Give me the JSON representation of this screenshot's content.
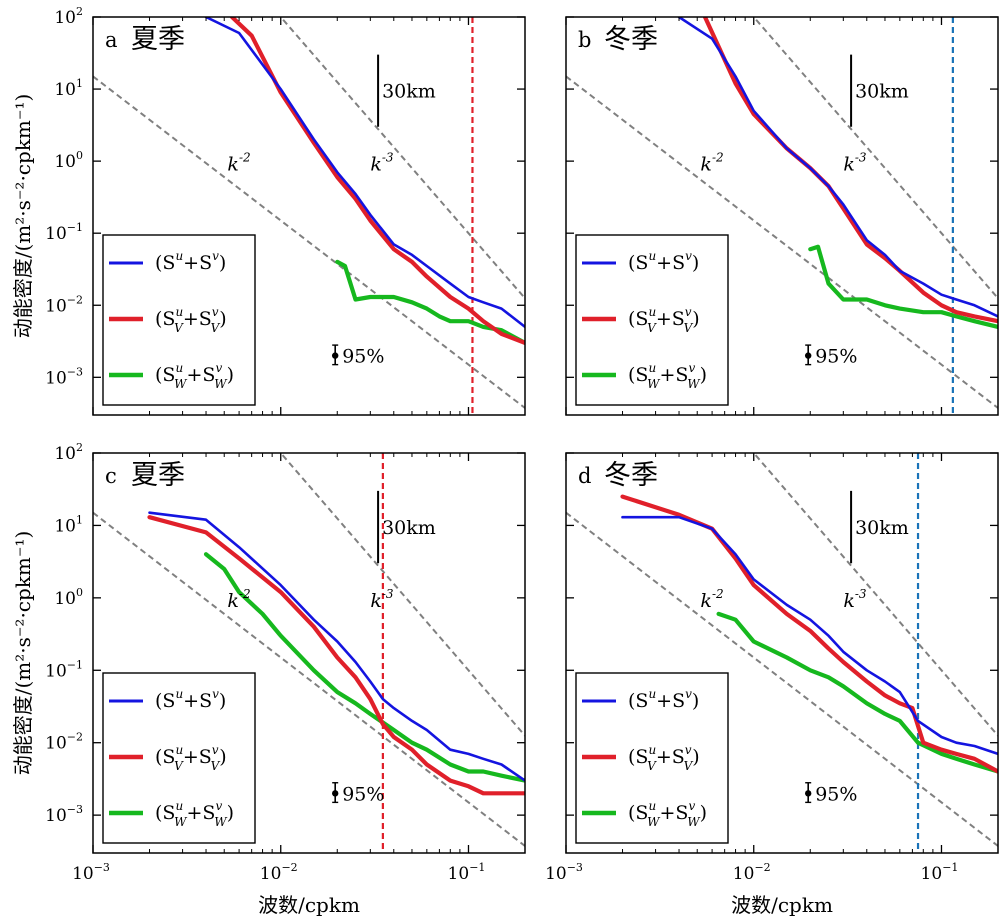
{
  "chart_data": [
    {
      "type": "line",
      "panel_letter": "a",
      "season": "夏季",
      "xlabel": "",
      "ylabel": "动能密度/(m²·s⁻²·cpkm⁻¹)",
      "xscale": "log",
      "yscale": "log",
      "xlim": [
        0.001,
        0.2
      ],
      "ylim": [
        0.0003,
        100
      ],
      "x_ticks": [
        0.001,
        0.01,
        0.1
      ],
      "x_tick_labels_visible": false,
      "y_ticks": [
        0.001,
        0.01,
        0.1,
        1,
        10,
        100
      ],
      "y_tick_labels_visible": true,
      "cutoff_line": {
        "x": 0.105,
        "color": "#e0202a"
      },
      "scale_bar_label": "30km",
      "scale_bar_x": 0.033,
      "scale_bar_y": [
        3,
        30
      ],
      "ref_slopes": [
        {
          "label": "k",
          "exp": "-2",
          "x0": 0.001,
          "y0": 15,
          "label_x": 0.0052,
          "label_y": 0.9
        },
        {
          "label": "k",
          "exp": "-3",
          "x0": 0.01,
          "y0": 100,
          "label_x": 0.03,
          "label_y": 0.9
        }
      ],
      "confidence_label": "95%",
      "confidence_x": 0.0195,
      "confidence_y": 0.002,
      "confidence_range": [
        0.0015,
        0.0028
      ],
      "legend_position": "lower-left",
      "series": [
        {
          "color": "#1414e0",
          "legend": {
            "base": "(S",
            "sup1": "u",
            "sub1": "",
            "mid": "+S",
            "sup2": "v",
            "sub2": "",
            "end": ")"
          },
          "x": [
            0.004,
            0.006,
            0.01,
            0.015,
            0.02,
            0.025,
            0.03,
            0.04,
            0.05,
            0.06,
            0.08,
            0.1,
            0.12,
            0.15,
            0.2
          ],
          "y": [
            100,
            60,
            10,
            2.0,
            0.7,
            0.35,
            0.18,
            0.07,
            0.05,
            0.035,
            0.02,
            0.013,
            0.011,
            0.009,
            0.005
          ]
        },
        {
          "color": "#e0202a",
          "legend": {
            "base": "(S",
            "sup1": "u",
            "sub1": "V",
            "mid": "+S",
            "sup2": "v",
            "sub2": "V",
            "end": ")"
          },
          "x": [
            0.0055,
            0.007,
            0.01,
            0.015,
            0.02,
            0.025,
            0.03,
            0.04,
            0.05,
            0.06,
            0.08,
            0.1,
            0.12,
            0.15,
            0.2
          ],
          "y": [
            100,
            55,
            9,
            1.8,
            0.6,
            0.3,
            0.15,
            0.06,
            0.04,
            0.025,
            0.013,
            0.009,
            0.006,
            0.004,
            0.003
          ]
        },
        {
          "color": "#16b81e",
          "legend": {
            "base": "(S",
            "sup1": "u",
            "sub1": "W",
            "mid": "+S",
            "sup2": "v",
            "sub2": "W",
            "end": ")"
          },
          "x": [
            0.02,
            0.022,
            0.025,
            0.03,
            0.04,
            0.05,
            0.06,
            0.07,
            0.08,
            0.1,
            0.12,
            0.15,
            0.2
          ],
          "y": [
            0.04,
            0.035,
            0.012,
            0.013,
            0.013,
            0.011,
            0.009,
            0.007,
            0.006,
            0.006,
            0.005,
            0.0045,
            0.003
          ]
        }
      ]
    },
    {
      "type": "line",
      "panel_letter": "b",
      "season": "冬季",
      "xlabel": "",
      "ylabel": "",
      "xscale": "log",
      "yscale": "log",
      "xlim": [
        0.001,
        0.2
      ],
      "ylim": [
        0.0003,
        100
      ],
      "x_ticks": [
        0.001,
        0.01,
        0.1
      ],
      "x_tick_labels_visible": false,
      "y_ticks": [
        0.001,
        0.01,
        0.1,
        1,
        10,
        100
      ],
      "y_tick_labels_visible": false,
      "cutoff_line": {
        "x": 0.115,
        "color": "#1a73b8"
      },
      "scale_bar_label": "30km",
      "scale_bar_x": 0.033,
      "scale_bar_y": [
        3,
        30
      ],
      "ref_slopes": [
        {
          "label": "k",
          "exp": "-2",
          "x0": 0.001,
          "y0": 15,
          "label_x": 0.0052,
          "label_y": 0.9
        },
        {
          "label": "k",
          "exp": "-3",
          "x0": 0.01,
          "y0": 100,
          "label_x": 0.03,
          "label_y": 0.9
        }
      ],
      "confidence_label": "95%",
      "confidence_x": 0.0195,
      "confidence_y": 0.002,
      "confidence_range": [
        0.0015,
        0.0028
      ],
      "legend_position": "lower-left",
      "series": [
        {
          "color": "#1414e0",
          "legend": {
            "base": "(S",
            "sup1": "u",
            "sub1": "",
            "mid": "+S",
            "sup2": "v",
            "sub2": "",
            "end": ")"
          },
          "x": [
            0.004,
            0.006,
            0.008,
            0.01,
            0.015,
            0.02,
            0.025,
            0.03,
            0.04,
            0.05,
            0.06,
            0.08,
            0.1,
            0.12,
            0.15,
            0.2
          ],
          "y": [
            100,
            50,
            15,
            5,
            1.5,
            0.8,
            0.45,
            0.25,
            0.08,
            0.05,
            0.03,
            0.02,
            0.014,
            0.012,
            0.01,
            0.007
          ]
        },
        {
          "color": "#e0202a",
          "legend": {
            "base": "(S",
            "sup1": "u",
            "sub1": "V",
            "mid": "+S",
            "sup2": "v",
            "sub2": "V",
            "end": ")"
          },
          "x": [
            0.0055,
            0.008,
            0.01,
            0.015,
            0.02,
            0.025,
            0.03,
            0.04,
            0.05,
            0.06,
            0.08,
            0.1,
            0.12,
            0.15,
            0.2
          ],
          "y": [
            100,
            12,
            4.5,
            1.5,
            0.8,
            0.45,
            0.22,
            0.07,
            0.045,
            0.03,
            0.015,
            0.01,
            0.008,
            0.007,
            0.006
          ]
        },
        {
          "color": "#16b81e",
          "legend": {
            "base": "(S",
            "sup1": "u",
            "sub1": "W",
            "mid": "+S",
            "sup2": "v",
            "sub2": "W",
            "end": ")"
          },
          "x": [
            0.02,
            0.022,
            0.025,
            0.03,
            0.04,
            0.05,
            0.06,
            0.08,
            0.1,
            0.12,
            0.15,
            0.2
          ],
          "y": [
            0.06,
            0.065,
            0.02,
            0.012,
            0.012,
            0.01,
            0.009,
            0.008,
            0.008,
            0.007,
            0.006,
            0.005
          ]
        }
      ]
    },
    {
      "type": "line",
      "panel_letter": "c",
      "season": "夏季",
      "xlabel": "波数/cpkm",
      "ylabel": "动能密度/(m²·s⁻²·cpkm⁻¹)",
      "xscale": "log",
      "yscale": "log",
      "xlim": [
        0.001,
        0.2
      ],
      "ylim": [
        0.0003,
        100
      ],
      "x_ticks": [
        0.001,
        0.01,
        0.1
      ],
      "x_tick_labels_visible": true,
      "y_ticks": [
        0.001,
        0.01,
        0.1,
        1,
        10,
        100
      ],
      "y_tick_labels_visible": true,
      "cutoff_line": {
        "x": 0.035,
        "color": "#e0202a"
      },
      "scale_bar_label": "30km",
      "scale_bar_x": 0.033,
      "scale_bar_y": [
        3,
        30
      ],
      "ref_slopes": [
        {
          "label": "k",
          "exp": "-2",
          "x0": 0.001,
          "y0": 15,
          "label_x": 0.0052,
          "label_y": 0.9
        },
        {
          "label": "k",
          "exp": "-3",
          "x0": 0.01,
          "y0": 100,
          "label_x": 0.03,
          "label_y": 0.9
        }
      ],
      "confidence_label": "95%",
      "confidence_x": 0.0195,
      "confidence_y": 0.002,
      "confidence_range": [
        0.0015,
        0.0028
      ],
      "legend_position": "lower-left",
      "series": [
        {
          "color": "#1414e0",
          "legend": {
            "base": "(S",
            "sup1": "u",
            "sub1": "",
            "mid": "+S",
            "sup2": "v",
            "sub2": "",
            "end": ")"
          },
          "x": [
            0.002,
            0.004,
            0.006,
            0.01,
            0.015,
            0.02,
            0.025,
            0.03,
            0.035,
            0.04,
            0.05,
            0.06,
            0.08,
            0.1,
            0.12,
            0.15,
            0.2
          ],
          "y": [
            15,
            12,
            5,
            1.5,
            0.5,
            0.25,
            0.13,
            0.07,
            0.04,
            0.03,
            0.02,
            0.015,
            0.008,
            0.007,
            0.006,
            0.005,
            0.003
          ]
        },
        {
          "color": "#e0202a",
          "legend": {
            "base": "(S",
            "sup1": "u",
            "sub1": "V",
            "mid": "+S",
            "sup2": "v",
            "sub2": "V",
            "end": ")"
          },
          "x": [
            0.002,
            0.004,
            0.006,
            0.01,
            0.015,
            0.02,
            0.025,
            0.03,
            0.035,
            0.04,
            0.05,
            0.06,
            0.08,
            0.1,
            0.12,
            0.15,
            0.2
          ],
          "y": [
            13,
            8,
            3.5,
            1.2,
            0.4,
            0.15,
            0.08,
            0.04,
            0.018,
            0.012,
            0.008,
            0.005,
            0.003,
            0.0025,
            0.002,
            0.002,
            0.002
          ]
        },
        {
          "color": "#16b81e",
          "legend": {
            "base": "(S",
            "sup1": "u",
            "sub1": "W",
            "mid": "+S",
            "sup2": "v",
            "sub2": "W",
            "end": ")"
          },
          "x": [
            0.004,
            0.005,
            0.006,
            0.008,
            0.01,
            0.015,
            0.02,
            0.025,
            0.03,
            0.04,
            0.05,
            0.06,
            0.08,
            0.1,
            0.12,
            0.15,
            0.2
          ],
          "y": [
            4,
            2.5,
            1.2,
            0.6,
            0.3,
            0.1,
            0.05,
            0.035,
            0.025,
            0.015,
            0.01,
            0.008,
            0.005,
            0.004,
            0.004,
            0.0035,
            0.003
          ]
        }
      ]
    },
    {
      "type": "line",
      "panel_letter": "d",
      "season": "冬季",
      "xlabel": "波数/cpkm",
      "ylabel": "",
      "xscale": "log",
      "yscale": "log",
      "xlim": [
        0.001,
        0.2
      ],
      "ylim": [
        0.0003,
        100
      ],
      "x_ticks": [
        0.001,
        0.01,
        0.1
      ],
      "x_tick_labels_visible": true,
      "y_ticks": [
        0.001,
        0.01,
        0.1,
        1,
        10,
        100
      ],
      "y_tick_labels_visible": false,
      "cutoff_line": {
        "x": 0.075,
        "color": "#1a73b8"
      },
      "scale_bar_label": "30km",
      "scale_bar_x": 0.033,
      "scale_bar_y": [
        3,
        30
      ],
      "ref_slopes": [
        {
          "label": "k",
          "exp": "-2",
          "x0": 0.001,
          "y0": 15,
          "label_x": 0.0052,
          "label_y": 0.9
        },
        {
          "label": "k",
          "exp": "-3",
          "x0": 0.01,
          "y0": 100,
          "label_x": 0.03,
          "label_y": 0.9
        }
      ],
      "confidence_label": "95%",
      "confidence_x": 0.0195,
      "confidence_y": 0.002,
      "confidence_range": [
        0.0015,
        0.0028
      ],
      "legend_position": "lower-left",
      "series": [
        {
          "color": "#1414e0",
          "legend": {
            "base": "(S",
            "sup1": "u",
            "sub1": "",
            "mid": "+S",
            "sup2": "v",
            "sub2": "",
            "end": ")"
          },
          "x": [
            0.002,
            0.004,
            0.006,
            0.008,
            0.01,
            0.015,
            0.02,
            0.025,
            0.03,
            0.04,
            0.05,
            0.06,
            0.075,
            0.1,
            0.12,
            0.15,
            0.2
          ],
          "y": [
            13,
            13,
            9,
            4,
            1.8,
            0.8,
            0.5,
            0.3,
            0.18,
            0.1,
            0.07,
            0.05,
            0.02,
            0.012,
            0.01,
            0.009,
            0.007
          ]
        },
        {
          "color": "#e0202a",
          "legend": {
            "base": "(S",
            "sup1": "u",
            "sub1": "V",
            "mid": "+S",
            "sup2": "v",
            "sub2": "V",
            "end": ")"
          },
          "x": [
            0.002,
            0.004,
            0.006,
            0.008,
            0.01,
            0.015,
            0.02,
            0.025,
            0.03,
            0.04,
            0.05,
            0.06,
            0.07,
            0.08,
            0.1,
            0.12,
            0.15,
            0.2
          ],
          "y": [
            25,
            14,
            9,
            3.5,
            1.5,
            0.6,
            0.35,
            0.2,
            0.13,
            0.07,
            0.045,
            0.035,
            0.03,
            0.01,
            0.008,
            0.007,
            0.006,
            0.004
          ]
        },
        {
          "color": "#16b81e",
          "legend": {
            "base": "(S",
            "sup1": "u",
            "sub1": "W",
            "mid": "+S",
            "sup2": "v",
            "sub2": "W",
            "end": ")"
          },
          "x": [
            0.0065,
            0.008,
            0.01,
            0.015,
            0.02,
            0.025,
            0.03,
            0.04,
            0.05,
            0.06,
            0.075,
            0.1,
            0.12,
            0.15,
            0.2
          ],
          "y": [
            0.6,
            0.5,
            0.25,
            0.15,
            0.1,
            0.08,
            0.06,
            0.035,
            0.025,
            0.02,
            0.01,
            0.007,
            0.006,
            0.005,
            0.004
          ]
        }
      ]
    }
  ]
}
